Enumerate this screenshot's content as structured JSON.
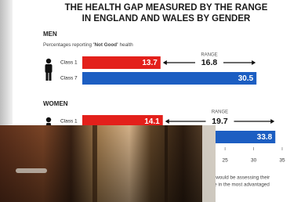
{
  "chart_data": {
    "type": "bar",
    "title": [
      "THE HEALTH GAP MEASURED BY THE RANGE",
      "IN ENGLAND AND WALES BY GENDER"
    ],
    "xlim": [
      0,
      35
    ],
    "xticks": [
      25,
      30,
      35
    ],
    "groups": [
      {
        "name": "MEN",
        "subtitle": [
          "Percentages reporting",
          "'Not Good'",
          "health"
        ],
        "categories": [
          "Class 1",
          "Class 7"
        ],
        "values": [
          13.7,
          30.5
        ],
        "colors": [
          "#e3201b",
          "#1c5ec2"
        ],
        "range_label": "RANGE",
        "range": 16.8
      },
      {
        "name": "WOMEN",
        "categories": [
          "Class 1",
          null
        ],
        "values": [
          14.1,
          33.8
        ],
        "colors": [
          "#e3201b",
          "#1c5ec2"
        ],
        "range_label": "RANGE",
        "range": 19.7
      }
    ],
    "footnote": [
      "e would be assessing their",
      "ce in the most advantaged"
    ]
  }
}
